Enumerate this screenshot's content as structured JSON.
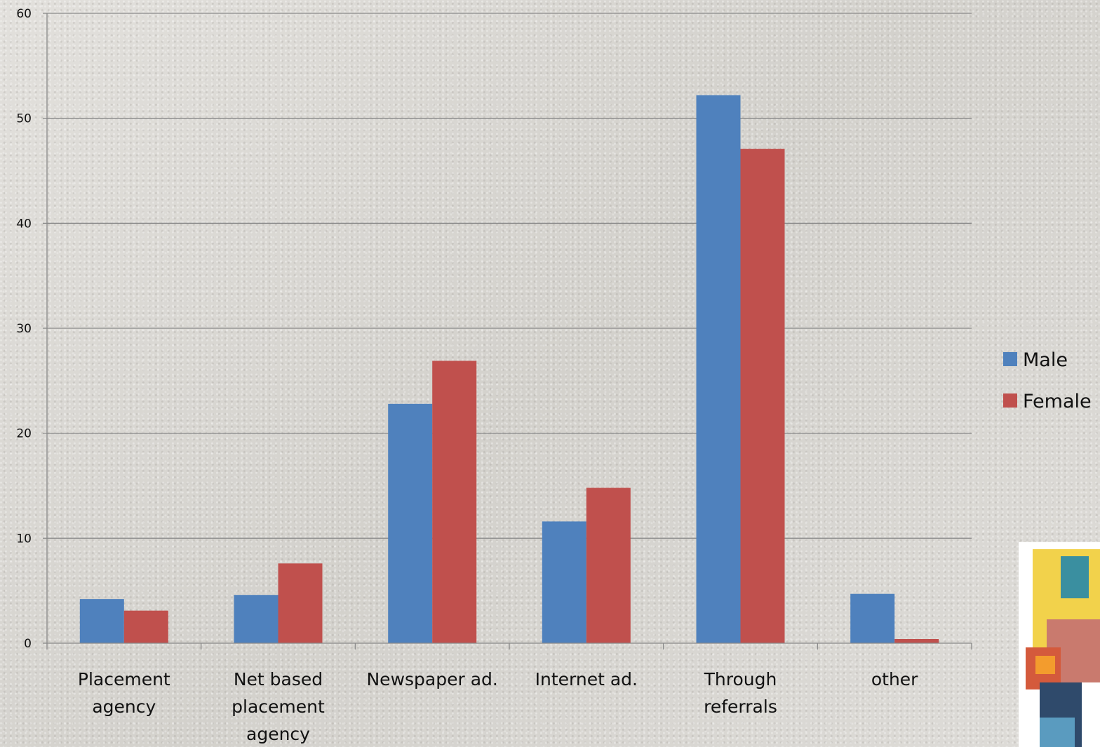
{
  "chart_data": {
    "type": "bar",
    "categories": [
      "Placement agency",
      "Net based placement agency",
      "Newspaper ad.",
      "Internet ad.",
      "Through referrals",
      "other"
    ],
    "category_lines": [
      [
        "Placement",
        "agency"
      ],
      [
        "Net based",
        "placement",
        "agency"
      ],
      [
        "Newspaper ad."
      ],
      [
        "Internet ad."
      ],
      [
        "Through",
        "referrals"
      ],
      [
        "other"
      ]
    ],
    "series": [
      {
        "name": "Male",
        "color": "#4f81bd",
        "values": [
          4.2,
          4.6,
          22.8,
          11.6,
          52.2,
          4.7
        ]
      },
      {
        "name": "Female",
        "color": "#c0504d",
        "values": [
          3.1,
          7.6,
          26.9,
          14.8,
          47.1,
          0.4
        ]
      }
    ],
    "ylim": [
      0,
      60
    ],
    "yticks": [
      0,
      10,
      20,
      30,
      40,
      50,
      60
    ],
    "ytick_labels": [
      "0",
      "10",
      "20",
      "30",
      "40",
      "50",
      "60"
    ],
    "grid": true,
    "legend_position": "right",
    "title": "",
    "xlabel": "",
    "ylabel": ""
  }
}
